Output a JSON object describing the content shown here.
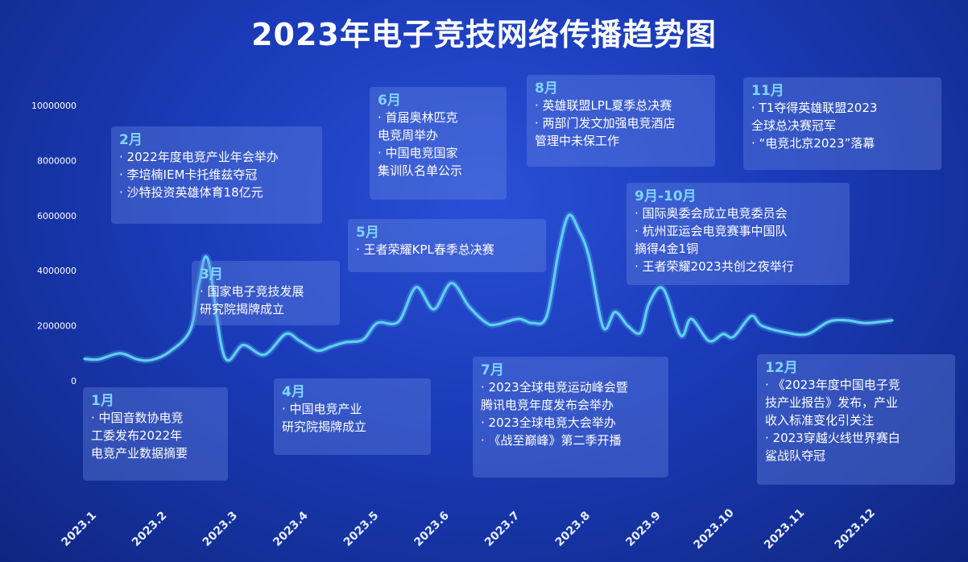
{
  "title": "2023年电子竞技网络传播趋势图",
  "chart_data": {
    "type": "line",
    "title": "2023年电子竞技网络传播趋势图",
    "ylim": [
      0,
      10000000
    ],
    "y_ticks": [
      "0",
      "2000000",
      "4000000",
      "6000000",
      "8000000",
      "10000000"
    ],
    "x_ticks": [
      "2023.1",
      "2023.2",
      "2023.3",
      "2023.4",
      "2023.5",
      "2023.6",
      "2023.7",
      "2023.8",
      "2023.9",
      "2023.10",
      "2023.11",
      "2023.12"
    ],
    "line_color": "#5fd0f5",
    "series": [
      {
        "x": [
          1.0,
          1.2,
          1.5,
          1.75,
          1.95,
          2.2,
          2.5,
          2.62,
          2.75,
          2.98,
          3.25,
          3.55,
          3.85,
          4.05,
          4.3,
          4.5,
          4.7,
          4.95,
          5.15,
          5.45,
          5.7,
          5.95,
          6.2,
          6.45,
          6.7,
          6.85,
          7.15,
          7.35,
          7.55,
          7.72,
          7.86,
          8.0,
          8.15,
          8.35,
          8.52,
          8.7,
          8.88,
          9.0,
          9.2,
          9.45,
          9.6,
          9.85,
          10.05,
          10.2,
          10.45,
          10.6,
          10.95,
          11.25,
          11.55,
          11.8,
          12.05,
          12.3,
          12.45
        ],
        "y": [
          800000,
          780000,
          1000000,
          780000,
          760000,
          1050000,
          1850000,
          3500000,
          4400000,
          900000,
          1300000,
          950000,
          1700000,
          1450000,
          1100000,
          1250000,
          1400000,
          1500000,
          2100000,
          2150000,
          3400000,
          2600000,
          3550000,
          2700000,
          2100000,
          2050000,
          2250000,
          2100000,
          2350000,
          4700000,
          6000000,
          5500000,
          4500000,
          1950000,
          2500000,
          2000000,
          1750000,
          2800000,
          3350000,
          1650000,
          2250000,
          1450000,
          1700000,
          1600000,
          2350000,
          2000000,
          1750000,
          1700000,
          2150000,
          2200000,
          2100000,
          2150000,
          2200000
        ]
      }
    ]
  },
  "events": [
    {
      "month": "1月",
      "text": "· 中国音数协电竞\n工委发布2022年\n电竞产业数据摘要"
    },
    {
      "month": "2月",
      "text": "· 2022年度电竞产业年会举办\n· 李培楠IEM卡托维兹夺冠\n· 沙特投资英雄体育18亿元"
    },
    {
      "month": "3月",
      "text": "· 国家电子竞技发展\n研究院揭牌成立"
    },
    {
      "month": "4月",
      "text": "· 中国电竞产业\n研究院揭牌成立"
    },
    {
      "month": "5月",
      "text": "· 王者荣耀KPL春季总决赛"
    },
    {
      "month": "6月",
      "text": "· 首届奥林匹克\n电竞周举办\n· 中国电竞国家\n集训队名单公示"
    },
    {
      "month": "7月",
      "text": "· 2023全球电竞运动峰会暨\n腾讯电竞年度发布会举办\n· 2023全球电竞大会举办\n· 《战至巅峰》第二季开播"
    },
    {
      "month": "8月",
      "text": "· 英雄联盟LPL夏季总决赛\n· 两部门发文加强电竞酒店\n管理中未保工作"
    },
    {
      "month": "9月-10月",
      "text": "· 国际奥委会成立电竞委员会\n· 杭州亚运会电竞赛事中国队\n摘得4金1铜\n· 王者荣耀2023共创之夜举行"
    },
    {
      "month": "11月",
      "text": "· T1夺得英雄联盟2023\n全球总决赛冠军\n· “电竞北京2023”落幕"
    },
    {
      "month": "12月",
      "text": "· 《2023年度中国电子竞\n技产业报告》发布，产业\n收入标准变化引关注\n· 2023穿越火线世界赛白\n鲨战队夺冠"
    }
  ]
}
